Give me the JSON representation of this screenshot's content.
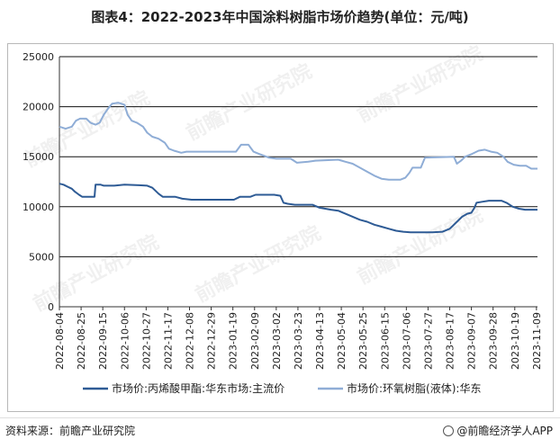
{
  "title": "图表4：2022-2023年中国涂料树脂市场价趋势(单位：元/吨)",
  "source": "资料来源：前瞻产业研究院",
  "brand": "@前瞻经济学人APP",
  "brand_icon": "circle-logo-icon",
  "watermark": "前瞻产业研究院",
  "chart_data": {
    "type": "line",
    "ylim": [
      0,
      25000
    ],
    "yticks": [
      "0",
      "5000",
      "10000",
      "15000",
      "20000",
      "25000"
    ],
    "grid": "horizontal",
    "legend_position": "bottom",
    "xticks": [
      "2022-08-04",
      "2022-08-25",
      "2022-09-15",
      "2022-10-06",
      "2022-10-27",
      "2022-11-17",
      "2022-12-08",
      "2022-12-29",
      "2023-01-19",
      "2023-02-09",
      "2023-03-02",
      "2023-03-23",
      "2023-04-13",
      "2023-05-04",
      "2023-05-25",
      "2023-06-15",
      "2023-07-06",
      "2023-07-27",
      "2023-08-17",
      "2023-09-07",
      "2023-09-28",
      "2023-10-19",
      "2023-11-09"
    ],
    "x_start": "2022-08-04",
    "x_end": "2023-11-10",
    "series": [
      {
        "name": "市场价:丙烯酸甲酯:华东市场:主流价",
        "color": "#2e5b95",
        "points": [
          [
            "2022-08-04",
            12300
          ],
          [
            "2022-08-08",
            12200
          ],
          [
            "2022-08-12",
            12000
          ],
          [
            "2022-08-16",
            11800
          ],
          [
            "2022-08-19",
            11500
          ],
          [
            "2022-08-23",
            11200
          ],
          [
            "2022-08-26",
            11000
          ],
          [
            "2022-09-02",
            11000
          ],
          [
            "2022-09-07",
            11000
          ],
          [
            "2022-09-08",
            12200
          ],
          [
            "2022-09-13",
            12200
          ],
          [
            "2022-09-16",
            12100
          ],
          [
            "2022-09-26",
            12100
          ],
          [
            "2022-10-06",
            12200
          ],
          [
            "2022-10-20",
            12150
          ],
          [
            "2022-10-28",
            12100
          ],
          [
            "2022-11-02",
            11900
          ],
          [
            "2022-11-08",
            11300
          ],
          [
            "2022-11-12",
            11000
          ],
          [
            "2022-11-24",
            11000
          ],
          [
            "2022-12-01",
            10800
          ],
          [
            "2022-12-10",
            10700
          ],
          [
            "2022-12-29",
            10700
          ],
          [
            "2023-01-12",
            10700
          ],
          [
            "2023-01-20",
            10700
          ],
          [
            "2023-01-26",
            11000
          ],
          [
            "2023-02-05",
            11000
          ],
          [
            "2023-02-10",
            11200
          ],
          [
            "2023-02-28",
            11200
          ],
          [
            "2023-03-06",
            11100
          ],
          [
            "2023-03-09",
            10400
          ],
          [
            "2023-03-13",
            10300
          ],
          [
            "2023-03-20",
            10200
          ],
          [
            "2023-04-06",
            10200
          ],
          [
            "2023-04-13",
            9900
          ],
          [
            "2023-04-24",
            9700
          ],
          [
            "2023-05-01",
            9600
          ],
          [
            "2023-05-08",
            9300
          ],
          [
            "2023-05-15",
            9000
          ],
          [
            "2023-05-22",
            8700
          ],
          [
            "2023-05-29",
            8500
          ],
          [
            "2023-06-05",
            8200
          ],
          [
            "2023-06-12",
            8000
          ],
          [
            "2023-06-19",
            7800
          ],
          [
            "2023-06-26",
            7600
          ],
          [
            "2023-07-03",
            7500
          ],
          [
            "2023-07-10",
            7450
          ],
          [
            "2023-07-31",
            7450
          ],
          [
            "2023-08-10",
            7500
          ],
          [
            "2023-08-17",
            7800
          ],
          [
            "2023-08-23",
            8400
          ],
          [
            "2023-08-29",
            9000
          ],
          [
            "2023-09-03",
            9300
          ],
          [
            "2023-09-07",
            9400
          ],
          [
            "2023-09-10",
            9900
          ],
          [
            "2023-09-12",
            10400
          ],
          [
            "2023-09-18",
            10500
          ],
          [
            "2023-09-24",
            10600
          ],
          [
            "2023-10-06",
            10600
          ],
          [
            "2023-10-11",
            10400
          ],
          [
            "2023-10-17",
            10000
          ],
          [
            "2023-10-23",
            9800
          ],
          [
            "2023-10-29",
            9700
          ],
          [
            "2023-11-10",
            9700
          ]
        ]
      },
      {
        "name": "市场价:环氧树脂(液体):华东",
        "color": "#8fadd6",
        "points": [
          [
            "2022-08-04",
            18000
          ],
          [
            "2022-08-10",
            17800
          ],
          [
            "2022-08-16",
            18000
          ],
          [
            "2022-08-20",
            18600
          ],
          [
            "2022-08-24",
            18800
          ],
          [
            "2022-08-30",
            18800
          ],
          [
            "2022-09-03",
            18400
          ],
          [
            "2022-09-08",
            18200
          ],
          [
            "2022-09-12",
            18400
          ],
          [
            "2022-09-16",
            19200
          ],
          [
            "2022-09-20",
            19800
          ],
          [
            "2022-09-24",
            20300
          ],
          [
            "2022-09-30",
            20400
          ],
          [
            "2022-10-06",
            20200
          ],
          [
            "2022-10-09",
            19200
          ],
          [
            "2022-10-13",
            18600
          ],
          [
            "2022-10-18",
            18400
          ],
          [
            "2022-10-24",
            18000
          ],
          [
            "2022-10-28",
            17400
          ],
          [
            "2022-11-02",
            17000
          ],
          [
            "2022-11-08",
            16800
          ],
          [
            "2022-11-14",
            16400
          ],
          [
            "2022-11-18",
            15800
          ],
          [
            "2022-11-23",
            15600
          ],
          [
            "2022-11-30",
            15400
          ],
          [
            "2022-12-05",
            15500
          ],
          [
            "2022-12-29",
            15500
          ],
          [
            "2023-01-15",
            15500
          ],
          [
            "2023-01-22",
            15500
          ],
          [
            "2023-01-27",
            16200
          ],
          [
            "2023-02-03",
            16200
          ],
          [
            "2023-02-08",
            15500
          ],
          [
            "2023-02-13",
            15300
          ],
          [
            "2023-02-18",
            15100
          ],
          [
            "2023-02-23",
            14900
          ],
          [
            "2023-03-02",
            14800
          ],
          [
            "2023-03-16",
            14800
          ],
          [
            "2023-03-22",
            14400
          ],
          [
            "2023-04-02",
            14500
          ],
          [
            "2023-04-09",
            14600
          ],
          [
            "2023-05-01",
            14700
          ],
          [
            "2023-05-08",
            14500
          ],
          [
            "2023-05-15",
            14300
          ],
          [
            "2023-05-22",
            13900
          ],
          [
            "2023-05-29",
            13500
          ],
          [
            "2023-06-05",
            13100
          ],
          [
            "2023-06-12",
            12800
          ],
          [
            "2023-06-19",
            12700
          ],
          [
            "2023-06-30",
            12700
          ],
          [
            "2023-07-05",
            12900
          ],
          [
            "2023-07-09",
            13400
          ],
          [
            "2023-07-12",
            13900
          ],
          [
            "2023-07-20",
            13900
          ],
          [
            "2023-07-24",
            14900
          ],
          [
            "2023-08-21",
            15000
          ],
          [
            "2023-08-24",
            14300
          ],
          [
            "2023-08-28",
            14600
          ],
          [
            "2023-09-01",
            15000
          ],
          [
            "2023-09-08",
            15300
          ],
          [
            "2023-09-14",
            15600
          ],
          [
            "2023-09-20",
            15700
          ],
          [
            "2023-09-26",
            15500
          ],
          [
            "2023-10-02",
            15400
          ],
          [
            "2023-10-08",
            15000
          ],
          [
            "2023-10-12",
            14500
          ],
          [
            "2023-10-18",
            14200
          ],
          [
            "2023-10-24",
            14100
          ],
          [
            "2023-10-30",
            14100
          ],
          [
            "2023-11-04",
            13800
          ],
          [
            "2023-11-10",
            13800
          ]
        ]
      }
    ]
  }
}
